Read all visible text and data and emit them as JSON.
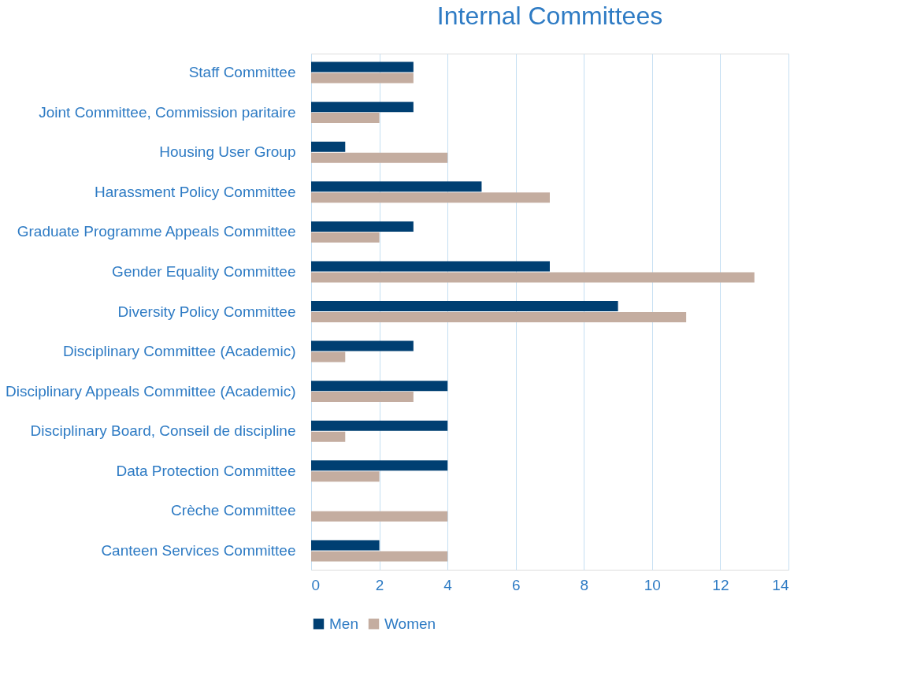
{
  "chart_data": {
    "type": "bar",
    "orientation": "horizontal",
    "title": "Internal Committees",
    "categories": [
      "Staff Committee",
      "Joint Committee, Commission paritaire",
      "Housing User Group",
      "Harassment Policy Committee",
      "Graduate Programme Appeals Committee",
      "Gender Equality Committee",
      "Diversity Policy Committee",
      "Disciplinary Committee (Academic)",
      "Disciplinary Appeals Committee (Academic)",
      "Disciplinary Board, Conseil de discipline",
      "Data Protection Committee",
      "Crèche Committee",
      "Canteen Services Committee"
    ],
    "series": [
      {
        "name": "Men",
        "color": "#003f72",
        "values": [
          3,
          3,
          1,
          5,
          3,
          7,
          9,
          3,
          4,
          4,
          4,
          0,
          2
        ]
      },
      {
        "name": "Women",
        "color": "#c4ada0",
        "values": [
          3,
          2,
          4,
          7,
          2,
          13,
          11,
          1,
          3,
          1,
          2,
          4,
          4
        ]
      }
    ],
    "xlim": [
      0,
      14
    ],
    "xticks": [
      0,
      2,
      4,
      6,
      8,
      10,
      12,
      14
    ],
    "grid": "x",
    "legend": "bottom"
  }
}
